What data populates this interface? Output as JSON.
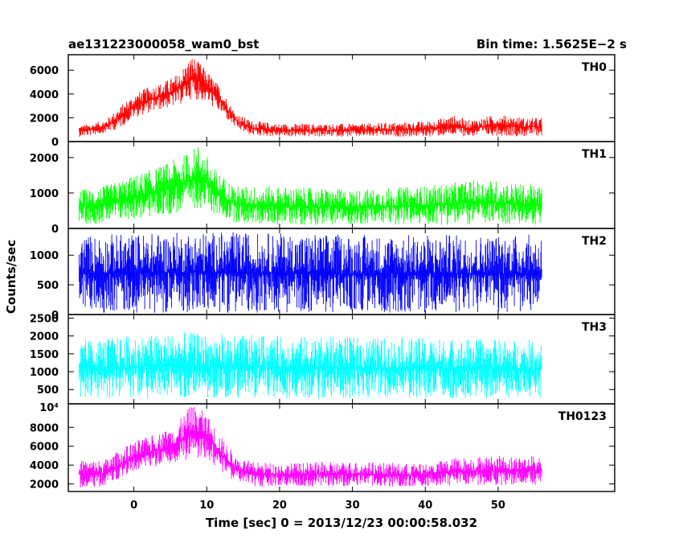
{
  "header": {
    "title": "ae131223000058_wam0_bst",
    "bin_time": "Bin time: 1.5625E−2 s"
  },
  "axes": {
    "xlabel": "Time [sec] 0 = 2013/12/23 00:00:58.032",
    "ylabel": "Counts/sec"
  },
  "chart_data": {
    "type": "line",
    "title": "ae131223000058_wam0_bst",
    "xlabel": "Time [sec] 0 = 2013/12/23 00:00:58.032",
    "ylabel": "Counts/sec",
    "xlim": [
      -9,
      66
    ],
    "x_ticks": [
      0,
      10,
      20,
      30,
      40,
      50
    ],
    "x_tick_labels": [
      "0",
      "10",
      "20",
      "30",
      "40",
      "50"
    ],
    "x_range_data": [
      -7.5,
      56
    ],
    "bin_time_s": 0.015625,
    "series": [
      {
        "name": "TH0",
        "color": "#ff0000",
        "ylim": [
          0,
          7300
        ],
        "y_ticks": [
          0,
          2000,
          4000,
          6000
        ],
        "y_tick_labels": [
          "0",
          "2000",
          "4000",
          "6000"
        ],
        "envelope": {
          "x": [
            -7.5,
            -6,
            -4,
            -2,
            0,
            2,
            4,
            6,
            8,
            10,
            12,
            14,
            16,
            20,
            30,
            40,
            44,
            46,
            50,
            54,
            56
          ],
          "high": [
            1400,
            1500,
            1800,
            2900,
            4000,
            4600,
            5000,
            5700,
            7300,
            6000,
            4500,
            2400,
            1800,
            1500,
            1500,
            1700,
            2200,
            1800,
            2300,
            2000,
            2000
          ],
          "low": [
            400,
            500,
            700,
            1100,
            2000,
            2400,
            2700,
            3000,
            3600,
            3300,
            2300,
            1100,
            500,
            400,
            400,
            400,
            500,
            400,
            500,
            400,
            500
          ]
        }
      },
      {
        "name": "TH1",
        "color": "#00ff00",
        "ylim": [
          0,
          2450
        ],
        "y_ticks": [
          0,
          1000,
          2000
        ],
        "y_tick_labels": [
          "0",
          "1000",
          "2000"
        ],
        "envelope": {
          "x": [
            -7.5,
            -4,
            0,
            4,
            7,
            9,
            11,
            14,
            18,
            30,
            40,
            48,
            56
          ],
          "high": [
            1100,
            1200,
            1500,
            1800,
            2100,
            2400,
            1700,
            1200,
            1200,
            1100,
            1200,
            1400,
            1200
          ],
          "low": [
            100,
            150,
            250,
            350,
            450,
            600,
            400,
            150,
            100,
            100,
            100,
            100,
            100
          ]
        }
      },
      {
        "name": "TH2",
        "color": "#0000ff",
        "ylim": [
          0,
          1450
        ],
        "y_ticks": [
          0,
          500,
          1000
        ],
        "y_tick_labels": [
          "0",
          "500",
          "1000"
        ],
        "envelope": {
          "x": [
            -7.5,
            10,
            30,
            56
          ],
          "high": [
            1350,
            1400,
            1350,
            1350
          ],
          "low": [
            30,
            30,
            30,
            30
          ]
        }
      },
      {
        "name": "TH3",
        "color": "#00ffff",
        "ylim": [
          100,
          2600
        ],
        "y_ticks": [
          500,
          1000,
          1500,
          2000,
          2500
        ],
        "y_tick_labels": [
          "500",
          "1000",
          "1500",
          "2000",
          "2500"
        ],
        "envelope": {
          "x": [
            -7.5,
            6,
            20,
            56
          ],
          "high": [
            1900,
            2100,
            2000,
            1900
          ],
          "low": [
            250,
            250,
            250,
            250
          ]
        }
      },
      {
        "name": "TH0123",
        "color": "#ff00ff",
        "ylim": [
          1200,
          10500
        ],
        "y_ticks": [
          2000,
          4000,
          6000,
          8000
        ],
        "y_tick_labels": [
          "2000",
          "4000",
          "6000",
          "8000"
        ],
        "y_top_label": "10⁴",
        "envelope": {
          "x": [
            -7.5,
            -4,
            0,
            4,
            6,
            8,
            10,
            12,
            14,
            16,
            20,
            30,
            40,
            44,
            48,
            56
          ],
          "high": [
            4500,
            4600,
            6500,
            7600,
            8500,
            10500,
            9500,
            7000,
            5000,
            4400,
            4200,
            4400,
            4100,
            4800,
            5000,
            5000
          ],
          "low": [
            1600,
            1700,
            3200,
            3900,
            4200,
            4700,
            4600,
            3300,
            2200,
            1700,
            1700,
            1700,
            1700,
            1800,
            1800,
            1800
          ]
        }
      }
    ]
  }
}
